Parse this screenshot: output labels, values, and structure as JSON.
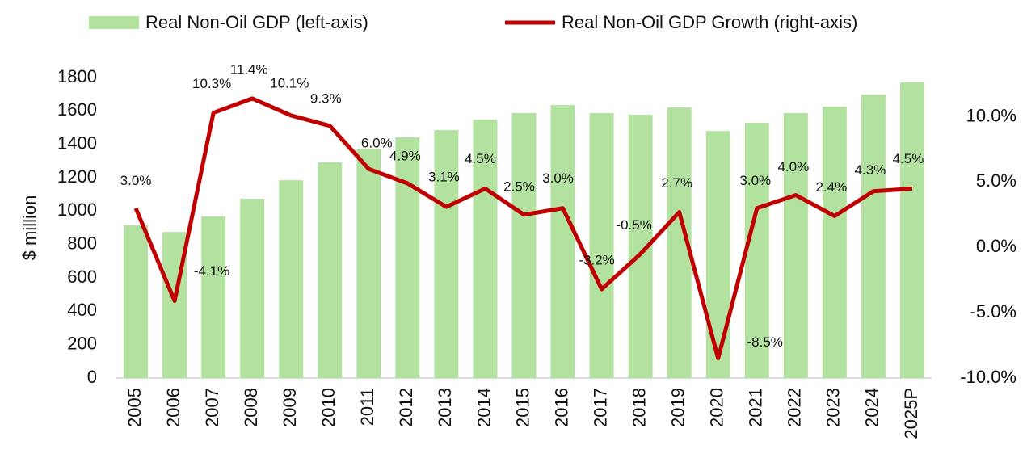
{
  "chart_data": {
    "type": "bar_line",
    "y_axis_label": "$ million",
    "categories": [
      "2005",
      "2006",
      "2007",
      "2008",
      "2009",
      "2010",
      "2011",
      "2012",
      "2013",
      "2014",
      "2015",
      "2016",
      "2017",
      "2018",
      "2019",
      "2020",
      "2021",
      "2022",
      "2023",
      "2024",
      "2025P"
    ],
    "series": [
      {
        "name": "Real Non-Oil GDP (left-axis)",
        "type": "bar",
        "color": "#b3e2a0",
        "values": [
          915,
          875,
          968,
          1074,
          1185,
          1292,
          1374,
          1442,
          1485,
          1548,
          1587,
          1635,
          1587,
          1577,
          1621,
          1480,
          1529,
          1587,
          1626,
          1698,
          1771
        ]
      },
      {
        "name": "Real Non-Oil GDP Growth (right-axis)",
        "type": "line",
        "axis": "y2",
        "color": "#c00000",
        "values": [
          3.0,
          -4.1,
          10.3,
          11.4,
          10.1,
          9.3,
          6.0,
          4.9,
          3.1,
          4.5,
          2.5,
          3.0,
          -3.2,
          -0.5,
          2.7,
          -8.5,
          3.0,
          4.0,
          2.4,
          4.3,
          4.5
        ],
        "value_labels": [
          "3.0%",
          "-4.1%",
          "10.3%",
          "11.4%",
          "10.1%",
          "9.3%",
          "6.0%",
          "4.9%",
          "3.1%",
          "4.5%",
          "2.5%",
          "3.0%",
          "-3.2%",
          "-0.5%",
          "2.7%",
          "-8.5%",
          "3.0%",
          "4.0%",
          "2.4%",
          "4.3%",
          "4.5%"
        ]
      }
    ],
    "ylim": [
      0,
      1800
    ],
    "yticks": [
      0,
      200,
      400,
      600,
      800,
      1000,
      1200,
      1400,
      1600,
      1800
    ],
    "y2lim": [
      -10,
      13
    ],
    "y2ticks": [
      {
        "value": -10,
        "label": "-10.0%"
      },
      {
        "value": -5,
        "label": "-5.0%"
      },
      {
        "value": 0,
        "label": "0.0%"
      },
      {
        "value": 5,
        "label": "5.0%"
      },
      {
        "value": 10,
        "label": "10.0%"
      }
    ]
  }
}
